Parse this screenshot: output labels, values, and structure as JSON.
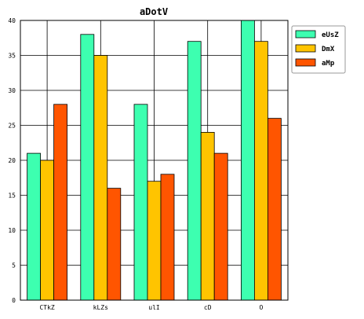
{
  "chart_data": {
    "type": "bar",
    "title": "aDotV",
    "xlabel": "",
    "ylabel": "",
    "categories": [
      "CTkZ",
      "kLZs",
      "ulI",
      "cD",
      "O"
    ],
    "series": [
      {
        "name": "eUsZ",
        "color": "#3dffb0",
        "values": [
          21,
          38,
          28,
          37,
          40
        ]
      },
      {
        "name": "DmX",
        "color": "#ffc400",
        "values": [
          20,
          35,
          17,
          24,
          37
        ]
      },
      {
        "name": "aMp",
        "color": "#ff5500",
        "values": [
          28,
          16,
          18,
          21,
          26
        ]
      }
    ],
    "ylim": [
      0,
      40
    ],
    "yticks": [
      0,
      5,
      10,
      15,
      20,
      25,
      30,
      35,
      40
    ],
    "grid": true,
    "legend_position": "top-right"
  }
}
